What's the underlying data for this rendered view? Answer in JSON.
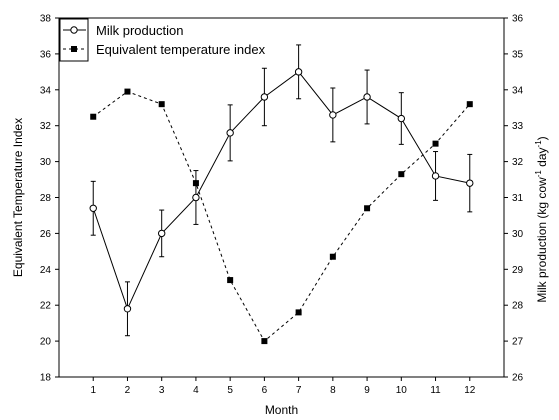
{
  "chart_data": {
    "type": "line",
    "title": "",
    "xlabel": "Month",
    "ylabel_left": "Equivalent Temperature Index",
    "ylabel_right_main": "Milk production (kg cow",
    "ylabel_right_sup1": "-1",
    "ylabel_right_mid": " day",
    "ylabel_right_sup2": "-1",
    "ylabel_right_end": ")",
    "x": [
      1,
      2,
      3,
      4,
      5,
      6,
      7,
      8,
      9,
      10,
      11,
      12
    ],
    "x_tick_labels": [
      "1",
      "2",
      "3",
      "4",
      "5",
      "6",
      "7",
      "8",
      "9",
      "10",
      "11",
      "12"
    ],
    "xlim": [
      0,
      13
    ],
    "ylim_left": [
      18,
      38
    ],
    "ylim_right": [
      26,
      36
    ],
    "y_ticks_left": [
      "18",
      "20",
      "22",
      "24",
      "26",
      "28",
      "30",
      "32",
      "34",
      "36",
      "38"
    ],
    "y_ticks_right": [
      "26",
      "27",
      "28",
      "29",
      "30",
      "31",
      "32",
      "33",
      "34",
      "35",
      "36"
    ],
    "grid": false,
    "legend_position": "top-left",
    "series": [
      {
        "name": "Milk production",
        "axis": "right",
        "line_style": "solid",
        "marker": "open-circle",
        "values": [
          30.7,
          27.9,
          30.0,
          31.0,
          32.8,
          33.8,
          34.5,
          33.3,
          33.8,
          33.2,
          31.6,
          31.4
        ],
        "errors": [
          0.75,
          0.75,
          0.65,
          0.75,
          0.78,
          0.8,
          0.75,
          0.75,
          0.75,
          0.72,
          0.68,
          0.8
        ]
      },
      {
        "name": "Equivalent temperature index",
        "axis": "left",
        "line_style": "dashed",
        "marker": "filled-square",
        "values": [
          32.5,
          33.9,
          33.2,
          28.8,
          23.4,
          20.0,
          21.6,
          24.7,
          27.4,
          29.3,
          31.0,
          33.2
        ]
      }
    ]
  }
}
